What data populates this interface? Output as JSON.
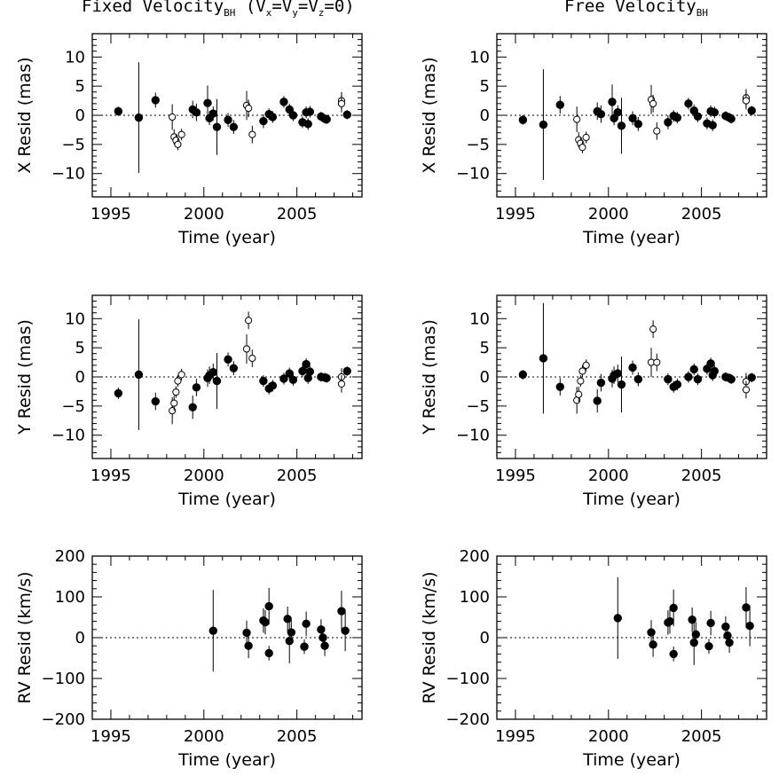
{
  "titles": {
    "left": "Fixed Velocity",
    "left_sub": "BH",
    "left_cond": " (V",
    "right": "Free Velocity",
    "right_sub": "BH"
  },
  "chart_data": [
    {
      "type": "scatter",
      "panel": "fixed-x",
      "xlabel": "Time (year)",
      "ylabel": "X Resid (mas)",
      "xlim": [
        1994,
        2008.5
      ],
      "ylim": [
        -14,
        14
      ],
      "xticks": [
        1995,
        2000,
        2005
      ],
      "yticks": [
        -10,
        -5,
        0,
        5,
        10
      ],
      "zero_line": true,
      "filled": [
        [
          1995.4,
          0.7,
          0.8
        ],
        [
          1996.5,
          -0.4,
          9.5
        ],
        [
          1997.4,
          2.6,
          1.3
        ],
        [
          1999.4,
          1.0,
          1.5
        ],
        [
          1999.6,
          0.5,
          1.5
        ],
        [
          2000.2,
          2.1,
          3.0
        ],
        [
          2000.3,
          -0.5,
          1.2
        ],
        [
          2000.5,
          0.3,
          1.2
        ],
        [
          2000.7,
          -2.0,
          4.8
        ],
        [
          2001.3,
          -0.8,
          1.2
        ],
        [
          2001.6,
          -2.0,
          1.2
        ],
        [
          2003.2,
          -1.0,
          1.2
        ],
        [
          2003.5,
          0.2,
          1.0
        ],
        [
          2003.7,
          -0.3,
          1.0
        ],
        [
          2004.3,
          2.3,
          1.0
        ],
        [
          2004.6,
          1.0,
          1.0
        ],
        [
          2004.8,
          0.0,
          1.0
        ],
        [
          2005.3,
          -1.2,
          1.0
        ],
        [
          2005.5,
          0.5,
          1.0
        ],
        [
          2005.6,
          -1.5,
          1.0
        ],
        [
          2005.7,
          0.6,
          1.0
        ],
        [
          2006.3,
          -0.2,
          0.8
        ],
        [
          2006.5,
          -0.6,
          0.8
        ],
        [
          2006.6,
          -0.7,
          0.8
        ],
        [
          2007.7,
          0.1,
          0.8
        ]
      ],
      "open": [
        [
          1998.3,
          -0.3,
          2.2
        ],
        [
          1998.4,
          -3.7,
          1.3
        ],
        [
          1998.5,
          -4.3,
          1.0
        ],
        [
          1998.6,
          -5.0,
          1.0
        ],
        [
          1998.8,
          -3.3,
          1.0
        ],
        [
          2002.3,
          1.7,
          2.5
        ],
        [
          2002.4,
          1.2,
          1.5
        ],
        [
          2002.6,
          -3.3,
          1.5
        ],
        [
          2007.4,
          2.5,
          1.5
        ],
        [
          2007.4,
          2.0,
          1.5
        ]
      ]
    },
    {
      "type": "scatter",
      "panel": "free-x",
      "xlabel": "Time (year)",
      "ylabel": "X Resid (mas)",
      "xlim": [
        1994,
        2008.5
      ],
      "ylim": [
        -14,
        14
      ],
      "xticks": [
        1995,
        2000,
        2005
      ],
      "yticks": [
        -10,
        -5,
        0,
        5,
        10
      ],
      "zero_line": true,
      "filled": [
        [
          1995.4,
          -0.8,
          0.8
        ],
        [
          1996.5,
          -1.6,
          9.5
        ],
        [
          1997.4,
          1.8,
          1.5
        ],
        [
          1999.4,
          0.7,
          1.5
        ],
        [
          1999.6,
          0.2,
          1.5
        ],
        [
          2000.2,
          2.3,
          3.0
        ],
        [
          2000.3,
          -0.5,
          1.2
        ],
        [
          2000.5,
          0.5,
          1.2
        ],
        [
          2000.7,
          -1.8,
          4.8
        ],
        [
          2001.3,
          -0.5,
          1.2
        ],
        [
          2001.6,
          -1.5,
          1.2
        ],
        [
          2003.2,
          -1.2,
          1.2
        ],
        [
          2003.5,
          -0.1,
          1.0
        ],
        [
          2003.7,
          -0.4,
          1.0
        ],
        [
          2004.3,
          2.0,
          1.0
        ],
        [
          2004.6,
          0.8,
          1.0
        ],
        [
          2004.8,
          -0.2,
          1.0
        ],
        [
          2005.3,
          -1.4,
          1.0
        ],
        [
          2005.5,
          0.7,
          1.0
        ],
        [
          2005.6,
          -1.7,
          1.0
        ],
        [
          2005.7,
          0.5,
          1.0
        ],
        [
          2006.3,
          -0.1,
          0.8
        ],
        [
          2006.5,
          -0.4,
          0.8
        ],
        [
          2006.6,
          -0.6,
          0.8
        ],
        [
          2007.7,
          0.8,
          0.8
        ]
      ],
      "open": [
        [
          1998.3,
          -0.7,
          2.2
        ],
        [
          1998.4,
          -4.2,
          1.3
        ],
        [
          1998.5,
          -4.8,
          1.0
        ],
        [
          1998.6,
          -5.5,
          1.0
        ],
        [
          1998.8,
          -3.8,
          1.0
        ],
        [
          2002.3,
          2.7,
          2.5
        ],
        [
          2002.4,
          2.0,
          1.5
        ],
        [
          2002.6,
          -2.7,
          1.5
        ],
        [
          2007.4,
          3.0,
          1.5
        ],
        [
          2007.4,
          2.5,
          1.5
        ]
      ]
    },
    {
      "type": "scatter",
      "panel": "fixed-y",
      "xlabel": "Time (year)",
      "ylabel": "Y Resid (mas)",
      "xlim": [
        1994,
        2008.5
      ],
      "ylim": [
        -14,
        14
      ],
      "xticks": [
        1995,
        2000,
        2005
      ],
      "yticks": [
        -10,
        -5,
        0,
        5,
        10
      ],
      "zero_line": true,
      "filled": [
        [
          1995.4,
          -2.8,
          1.0
        ],
        [
          1996.5,
          0.4,
          9.5
        ],
        [
          1997.4,
          -4.2,
          1.5
        ],
        [
          1999.4,
          -5.2,
          2.0
        ],
        [
          1999.6,
          -1.8,
          1.5
        ],
        [
          2000.2,
          -0.2,
          1.5
        ],
        [
          2000.3,
          0.3,
          1.5
        ],
        [
          2000.5,
          0.8,
          1.5
        ],
        [
          2000.7,
          -0.7,
          4.8
        ],
        [
          2001.3,
          3.0,
          1.2
        ],
        [
          2001.6,
          1.5,
          1.2
        ],
        [
          2003.2,
          -0.7,
          1.0
        ],
        [
          2003.5,
          -2.0,
          1.0
        ],
        [
          2003.7,
          -1.5,
          1.0
        ],
        [
          2004.3,
          -0.3,
          1.0
        ],
        [
          2004.6,
          0.6,
          1.0
        ],
        [
          2004.8,
          -0.5,
          1.0
        ],
        [
          2005.3,
          1.0,
          1.0
        ],
        [
          2005.5,
          2.2,
          1.0
        ],
        [
          2005.6,
          -0.2,
          1.0
        ],
        [
          2005.7,
          0.9,
          1.0
        ],
        [
          2006.3,
          0.0,
          0.8
        ],
        [
          2006.5,
          -0.1,
          0.8
        ],
        [
          2006.6,
          -0.2,
          0.8
        ],
        [
          2007.7,
          1.0,
          0.8
        ]
      ],
      "open": [
        [
          1998.3,
          -5.8,
          2.3
        ],
        [
          1998.4,
          -4.5,
          1.3
        ],
        [
          1998.5,
          -2.6,
          1.0
        ],
        [
          1998.6,
          -0.7,
          1.0
        ],
        [
          1998.8,
          0.4,
          1.0
        ],
        [
          2002.3,
          4.8,
          2.5
        ],
        [
          2002.4,
          9.7,
          1.5
        ],
        [
          2002.6,
          3.2,
          1.5
        ],
        [
          2007.4,
          0.0,
          1.5
        ],
        [
          2007.4,
          -1.2,
          1.5
        ]
      ]
    },
    {
      "type": "scatter",
      "panel": "free-y",
      "xlabel": "Time (year)",
      "ylabel": "Y Resid (mas)",
      "xlim": [
        1994,
        2008.5
      ],
      "ylim": [
        -14,
        14
      ],
      "xticks": [
        1995,
        2000,
        2005
      ],
      "yticks": [
        -10,
        -5,
        0,
        5,
        10
      ],
      "zero_line": true,
      "filled": [
        [
          1995.4,
          0.4,
          0.8
        ],
        [
          1996.5,
          3.2,
          9.5
        ],
        [
          1997.4,
          -1.7,
          1.5
        ],
        [
          1999.4,
          -4.1,
          2.0
        ],
        [
          1999.6,
          -1.0,
          1.5
        ],
        [
          2000.2,
          -0.3,
          1.5
        ],
        [
          2000.3,
          0.3,
          1.5
        ],
        [
          2000.5,
          0.6,
          1.5
        ],
        [
          2000.7,
          -1.3,
          4.8
        ],
        [
          2001.3,
          1.6,
          1.2
        ],
        [
          2001.6,
          -0.4,
          1.2
        ],
        [
          2003.2,
          -0.4,
          1.0
        ],
        [
          2003.5,
          -1.7,
          1.0
        ],
        [
          2003.7,
          -1.3,
          1.0
        ],
        [
          2004.3,
          0.0,
          1.0
        ],
        [
          2004.6,
          1.3,
          1.0
        ],
        [
          2004.8,
          -0.4,
          1.0
        ],
        [
          2005.3,
          1.4,
          1.0
        ],
        [
          2005.5,
          2.3,
          1.0
        ],
        [
          2005.6,
          0.3,
          1.0
        ],
        [
          2005.7,
          1.0,
          1.0
        ],
        [
          2006.3,
          0.0,
          0.8
        ],
        [
          2006.5,
          -0.2,
          0.8
        ],
        [
          2006.6,
          -0.4,
          0.8
        ],
        [
          2007.7,
          -0.1,
          0.8
        ]
      ],
      "open": [
        [
          1998.3,
          -4.0,
          2.3
        ],
        [
          1998.4,
          -3.0,
          1.3
        ],
        [
          1998.5,
          -0.7,
          1.0
        ],
        [
          1998.6,
          1.0,
          1.0
        ],
        [
          1998.8,
          2.0,
          1.0
        ],
        [
          2002.3,
          2.5,
          2.5
        ],
        [
          2002.4,
          8.2,
          1.5
        ],
        [
          2002.6,
          2.5,
          1.5
        ],
        [
          2007.4,
          -0.8,
          1.5
        ],
        [
          2007.4,
          -2.2,
          1.5
        ]
      ]
    },
    {
      "type": "scatter",
      "panel": "fixed-rv",
      "xlabel": "Time (year)",
      "ylabel": "RV Resid (km/s)",
      "xlim": [
        1994,
        2008.5
      ],
      "ylim": [
        -200,
        200
      ],
      "xticks": [
        1995,
        2000,
        2005
      ],
      "yticks": [
        -200,
        -100,
        0,
        100,
        200
      ],
      "zero_line": true,
      "filled": [
        [
          2000.5,
          17,
          100
        ],
        [
          2002.3,
          12,
          30
        ],
        [
          2002.4,
          -20,
          30
        ],
        [
          2003.2,
          42,
          30
        ],
        [
          2003.3,
          38,
          30
        ],
        [
          2003.5,
          77,
          45
        ],
        [
          2003.5,
          -38,
          18
        ],
        [
          2004.5,
          46,
          30
        ],
        [
          2004.6,
          -8,
          55
        ],
        [
          2004.7,
          13,
          30
        ],
        [
          2005.4,
          -22,
          18
        ],
        [
          2005.5,
          34,
          30
        ],
        [
          2006.3,
          20,
          25
        ],
        [
          2006.4,
          0,
          25
        ],
        [
          2006.5,
          -20,
          25
        ],
        [
          2007.4,
          65,
          50
        ],
        [
          2007.6,
          17,
          50
        ]
      ],
      "open": []
    },
    {
      "type": "scatter",
      "panel": "free-rv",
      "xlabel": "Time (year)",
      "ylabel": "RV Resid (km/s)",
      "xlim": [
        1994,
        2008.5
      ],
      "ylim": [
        -200,
        200
      ],
      "xticks": [
        1995,
        2000,
        2005
      ],
      "yticks": [
        -200,
        -100,
        0,
        100,
        200
      ],
      "zero_line": true,
      "filled": [
        [
          2000.5,
          48,
          100
        ],
        [
          2002.3,
          13,
          30
        ],
        [
          2002.4,
          -17,
          30
        ],
        [
          2003.2,
          37,
          30
        ],
        [
          2003.3,
          40,
          30
        ],
        [
          2003.5,
          73,
          45
        ],
        [
          2003.5,
          -40,
          18
        ],
        [
          2004.5,
          44,
          30
        ],
        [
          2004.6,
          -12,
          55
        ],
        [
          2004.7,
          8,
          30
        ],
        [
          2005.4,
          -21,
          18
        ],
        [
          2005.5,
          36,
          30
        ],
        [
          2006.3,
          27,
          25
        ],
        [
          2006.4,
          5,
          25
        ],
        [
          2006.5,
          -12,
          25
        ],
        [
          2007.4,
          74,
          50
        ],
        [
          2007.6,
          29,
          50
        ]
      ],
      "open": []
    }
  ]
}
